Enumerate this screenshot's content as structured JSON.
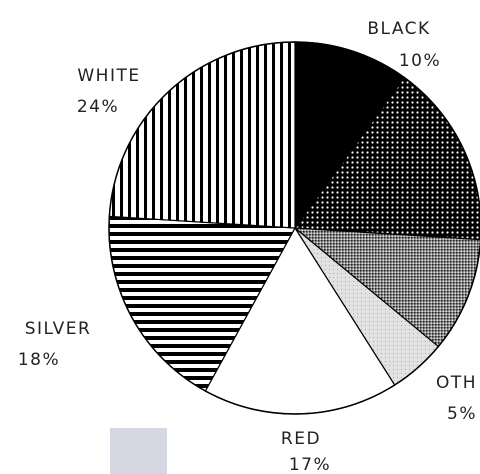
{
  "chart_data": {
    "type": "pie",
    "slices": [
      {
        "label": "BLACK",
        "pct_label": "10%",
        "value": 10,
        "pattern": "solid-black"
      },
      {
        "label": "",
        "pct_label": "",
        "value": 16,
        "pattern": "dense-dots"
      },
      {
        "label": "",
        "pct_label": "",
        "value": 10,
        "pattern": "fine-crosshatch"
      },
      {
        "label": "OTH",
        "pct_label": "5%",
        "value": 5,
        "pattern": "light-stipple"
      },
      {
        "label": "RED",
        "pct_label": "17%",
        "value": 17,
        "pattern": "white"
      },
      {
        "label": "SILVER",
        "pct_label": "18%",
        "value": 18,
        "pattern": "horizontal-stripes"
      },
      {
        "label": "WHITE",
        "pct_label": "24%",
        "value": 24,
        "pattern": "vertical-stripes"
      }
    ]
  }
}
